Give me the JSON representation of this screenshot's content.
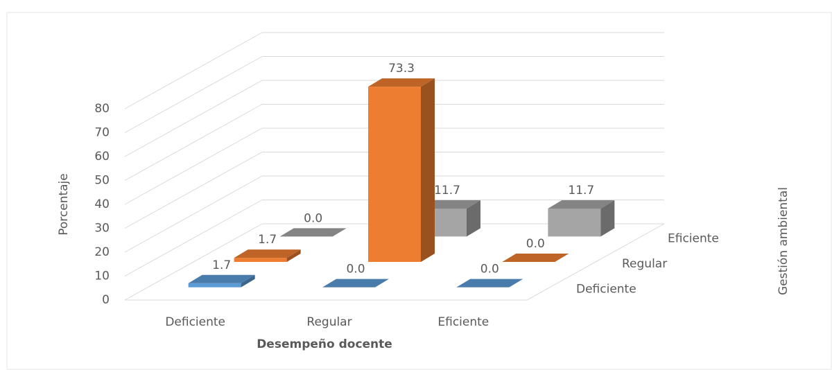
{
  "chart_data": {
    "type": "bar3d",
    "x_label": "Desempeño docente",
    "y_label": "Porcentaje",
    "z_label": "Gestión ambiental",
    "categories": [
      "Deficiente",
      "Regular",
      "Eficiente"
    ],
    "series": [
      {
        "name": "Deficiente",
        "color": "#5b9bd5",
        "values": [
          1.7,
          0.0,
          0.0
        ],
        "value_labels": [
          "1.7",
          "0.0",
          "0.0"
        ]
      },
      {
        "name": "Regular",
        "color": "#ed7d31",
        "values": [
          1.7,
          73.3,
          0.0
        ],
        "value_labels": [
          "1.7",
          "73.3",
          "0.0"
        ]
      },
      {
        "name": "Eficiente",
        "color": "#a5a5a5",
        "values": [
          0.0,
          11.7,
          11.7
        ],
        "value_labels": [
          "0.0",
          "11.7",
          "11.7"
        ]
      }
    ],
    "ylim": [
      0,
      80
    ],
    "yticks": [
      0,
      10,
      20,
      30,
      40,
      50,
      60,
      70,
      80
    ],
    "grid": true
  }
}
